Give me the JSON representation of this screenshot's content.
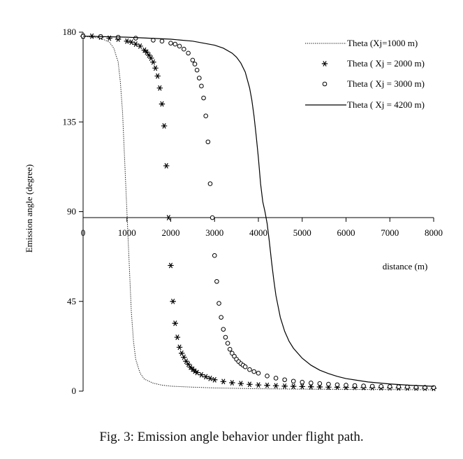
{
  "caption": "Fig. 3: Emission angle behavior under flight path.",
  "chart_data": {
    "type": "scatter",
    "title": "",
    "xlabel": "distance (m)",
    "ylabel": "Emission angle (degree)",
    "xlim": [
      0,
      8000
    ],
    "ylim": [
      0,
      180
    ],
    "x_axis_crossing_y": 87,
    "x_ticks": [
      0,
      1000,
      2000,
      3000,
      4000,
      5000,
      6000,
      7000,
      8000
    ],
    "x_tick_labels": [
      "0",
      "1000",
      "2000",
      "3000",
      "4000",
      "5000",
      "6000",
      "7000",
      "8000"
    ],
    "y_ticks": [
      0,
      45,
      90,
      135,
      180
    ],
    "y_tick_labels": [
      "0",
      "45",
      "90",
      "135",
      "180"
    ],
    "grid": false,
    "legend_position": "top-right",
    "series": [
      {
        "name": "Theta (Xj=1000 m)",
        "style": "dotted-line",
        "x": [
          0,
          400,
          600,
          700,
          800,
          850,
          900,
          930,
          960,
          980,
          1000,
          1020,
          1040,
          1070,
          1100,
          1150,
          1200,
          1300,
          1400,
          1600,
          1800,
          2000,
          2500,
          3000,
          4000,
          5000,
          6000,
          7000,
          8000
        ],
        "y": [
          178,
          177,
          175,
          172,
          165,
          155,
          140,
          125,
          110,
          100,
          90,
          80,
          70,
          55,
          40,
          25,
          16,
          9,
          6,
          4,
          3,
          2.5,
          2,
          1.6,
          1.2,
          1,
          0.9,
          0.8,
          0.7
        ]
      },
      {
        "name": "Theta ( Xj = 2000 m)",
        "style": "asterisk",
        "x": [
          0,
          200,
          400,
          600,
          800,
          1000,
          1100,
          1200,
          1300,
          1400,
          1450,
          1500,
          1550,
          1600,
          1650,
          1700,
          1750,
          1800,
          1850,
          1900,
          1950,
          2000,
          2050,
          2100,
          2150,
          2200,
          2250,
          2300,
          2350,
          2400,
          2450,
          2500,
          2550,
          2600,
          2700,
          2800,
          2900,
          3000,
          3200,
          3400,
          3600,
          3800,
          4000,
          4200,
          4400,
          4600,
          4800,
          5000,
          5200,
          5400,
          5600,
          5800,
          6000,
          6200,
          6400,
          6600,
          6800,
          7000,
          7200,
          7400,
          7600,
          7800,
          8000
        ],
        "y": [
          178,
          178,
          177.5,
          177,
          176.5,
          175.5,
          175,
          174,
          173,
          171,
          170,
          168.5,
          167,
          165,
          162,
          158,
          152,
          144,
          133,
          113,
          87,
          63,
          45,
          34,
          27,
          22,
          19,
          17,
          15,
          13.5,
          12,
          11,
          10,
          9.3,
          8.2,
          7.2,
          6.4,
          5.7,
          4.8,
          4.2,
          3.8,
          3.4,
          3.1,
          2.9,
          2.7,
          2.5,
          2.4,
          2.3,
          2.2,
          2.1,
          2,
          1.95,
          1.9,
          1.85,
          1.8,
          1.75,
          1.7,
          1.65,
          1.6,
          1.55,
          1.5,
          1.45,
          1.4
        ]
      },
      {
        "name": "Theta ( Xj = 3000 m)",
        "style": "circle",
        "x": [
          0,
          400,
          800,
          1200,
          1600,
          1800,
          2000,
          2100,
          2200,
          2300,
          2400,
          2500,
          2550,
          2600,
          2650,
          2700,
          2750,
          2800,
          2850,
          2900,
          2950,
          3000,
          3050,
          3100,
          3150,
          3200,
          3250,
          3300,
          3350,
          3400,
          3450,
          3500,
          3550,
          3600,
          3650,
          3700,
          3800,
          3900,
          4000,
          4200,
          4400,
          4600,
          4800,
          5000,
          5200,
          5400,
          5600,
          5800,
          6000,
          6200,
          6400,
          6600,
          6800,
          7000,
          7200,
          7400,
          7600,
          7800,
          8000
        ],
        "y": [
          178,
          177.8,
          177.5,
          177,
          176,
          175.5,
          174.5,
          174,
          173,
          171.5,
          169.5,
          166,
          164,
          161,
          157,
          153,
          147,
          138,
          125,
          104,
          87,
          68,
          55,
          44,
          37,
          31,
          27,
          24,
          21,
          19,
          17.5,
          16,
          14.8,
          13.8,
          13,
          12.2,
          10.8,
          9.8,
          9,
          7.6,
          6.5,
          5.7,
          5,
          4.5,
          4.1,
          3.8,
          3.5,
          3.2,
          3,
          2.8,
          2.6,
          2.5,
          2.4,
          2.3,
          2.2,
          2.1,
          2,
          1.9,
          1.8
        ]
      },
      {
        "name": "Theta ( Xj = 4200 m)",
        "style": "solid-line",
        "x": [
          0,
          1000,
          2000,
          2500,
          3000,
          3200,
          3400,
          3500,
          3600,
          3700,
          3800,
          3850,
          3900,
          3950,
          4000,
          4050,
          4100,
          4150,
          4200,
          4250,
          4300,
          4350,
          4400,
          4500,
          4600,
          4700,
          4800,
          5000,
          5200,
          5400,
          5600,
          5800,
          6000,
          6500,
          7000,
          7500,
          8000
        ],
        "y": [
          178,
          177.5,
          176.5,
          175.5,
          173.5,
          172,
          169.5,
          167.5,
          164.5,
          160,
          152,
          146,
          138,
          128,
          117,
          104,
          95,
          90,
          84,
          75,
          65,
          56,
          48,
          37,
          30,
          25,
          21.5,
          16.5,
          13,
          10.5,
          8.8,
          7.4,
          6.3,
          4.6,
          3.6,
          2.9,
          2.4
        ]
      }
    ]
  }
}
